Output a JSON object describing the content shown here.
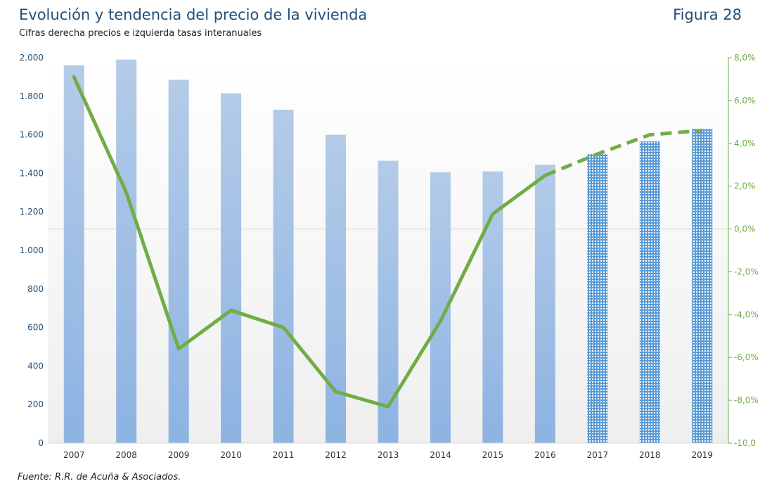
{
  "header": {
    "title": "Evolución y tendencia del precio de la vivienda",
    "figure_label": "Figura 28",
    "subtitle": "Cifras derecha precios e izquierda tasas interanuales"
  },
  "footer": {
    "source": "Fuente: R.R. de Acuña & Asociados."
  },
  "colors": {
    "bar_top": "#b4cbe8",
    "bar_bottom": "#8db3e2",
    "forecast_bar": "#5b9bd5",
    "line": "#70ad47",
    "left_axis_text": "#1f4e79",
    "right_axis_text": "#70ad47",
    "zero_line": "#e6ecd9"
  },
  "chart_data": {
    "type": "bar",
    "categories": [
      "2007",
      "2008",
      "2009",
      "2010",
      "2011",
      "2012",
      "2013",
      "2014",
      "2015",
      "2016",
      "2017",
      "2018",
      "2019"
    ],
    "series": [
      {
        "name": "Precio",
        "type": "bar",
        "axis": "left",
        "values": [
          1960,
          1990,
          1885,
          1815,
          1730,
          1600,
          1465,
          1405,
          1410,
          1445,
          1500,
          1565,
          1630
        ],
        "forecast_from_index": 10
      },
      {
        "name": "Tasa interanual",
        "type": "line",
        "axis": "right",
        "values": [
          7.1,
          1.7,
          -5.6,
          -3.8,
          -4.6,
          -7.6,
          -8.3,
          -4.3,
          0.7,
          2.5,
          3.5,
          4.4,
          4.6
        ],
        "forecast_from_index": 9
      }
    ],
    "y_left": {
      "range": [
        0,
        2000
      ],
      "ticks": [
        0,
        200,
        400,
        600,
        800,
        1000,
        1200,
        1400,
        1600,
        1800,
        2000
      ],
      "tick_labels": [
        "0",
        "200",
        "400",
        "600",
        "800",
        "1.000",
        "1.200",
        "1.400",
        "1.600",
        "1.800",
        "2.000"
      ]
    },
    "y_right": {
      "range": [
        -10,
        8
      ],
      "ticks": [
        -10,
        -8,
        -6,
        -4,
        -2,
        0,
        2,
        4,
        6,
        8
      ],
      "tick_labels": [
        "-10,0",
        "-8,0%",
        "-6,0%",
        "-4,0%",
        "-2,0%",
        "0,0%",
        "2,0%",
        "4,0%",
        "6,0%",
        "8,0%"
      ]
    },
    "xlabel": "",
    "ylabel": "",
    "grid": false,
    "legend": "none"
  }
}
